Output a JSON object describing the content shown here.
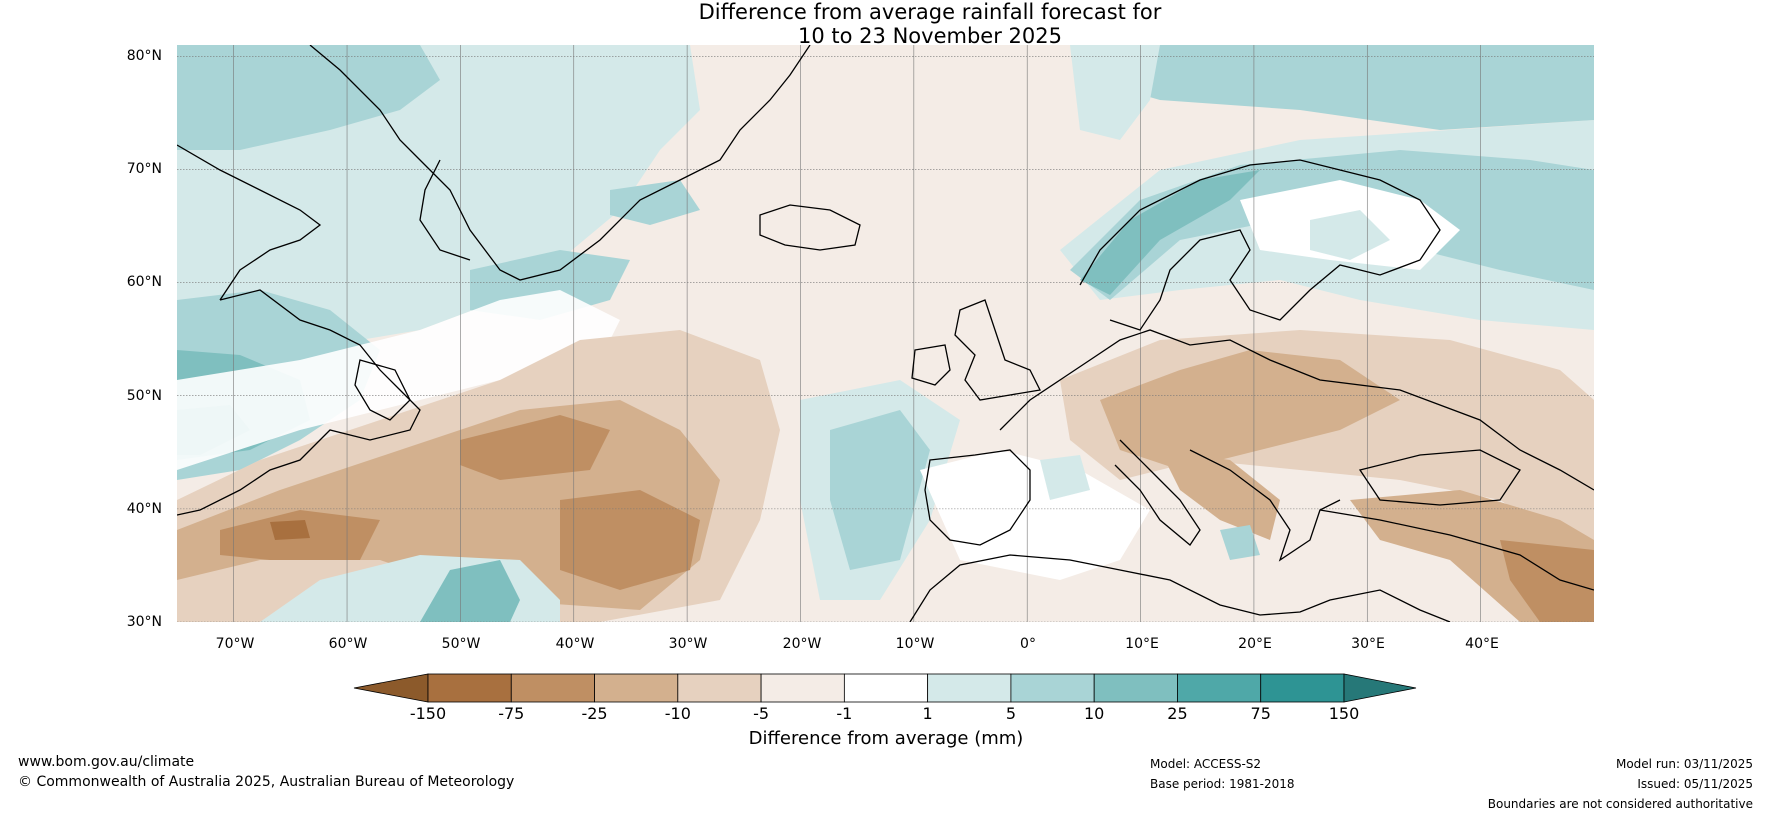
{
  "title": {
    "line1": "Difference from average rainfall forecast for",
    "line2": "10 to 23 November 2025"
  },
  "map": {
    "latitude_labels": [
      "80°N",
      "70°N",
      "60°N",
      "50°N",
      "40°N",
      "30°N"
    ],
    "longitude_labels": [
      "70°W",
      "60°W",
      "50°W",
      "40°W",
      "30°W",
      "20°W",
      "10°W",
      "0°",
      "10°E",
      "20°E",
      "30°E",
      "40°E"
    ],
    "extent": {
      "lon_min": -75,
      "lon_max": 50,
      "lat_min": 30,
      "lat_max": 81
    }
  },
  "colorbar": {
    "label": "Difference from average (mm)",
    "ticks": [
      "-150",
      "-75",
      "-25",
      "-10",
      "-5",
      "-1",
      "1",
      "5",
      "10",
      "25",
      "75",
      "150"
    ],
    "colors": [
      "#8c5a2b",
      "#a8703f",
      "#bf8f63",
      "#d3b08e",
      "#e6d1bf",
      "#f4ece6",
      "#ffffff",
      "#d4e9e9",
      "#a9d4d6",
      "#7fbfbf",
      "#4fa8a8",
      "#2e9494",
      "#267878"
    ]
  },
  "footer": {
    "website": "www.bom.gov.au/climate",
    "copyright": "© Commonwealth of Australia 2025, Australian Bureau of Meteorology",
    "model": "Model: ACCESS-S2",
    "base_period": "Base period: 1981-2018",
    "model_run": "Model run: 03/11/2025",
    "issued": "Issued: 05/11/2025",
    "disclaimer": "Boundaries are not considered authoritative"
  }
}
